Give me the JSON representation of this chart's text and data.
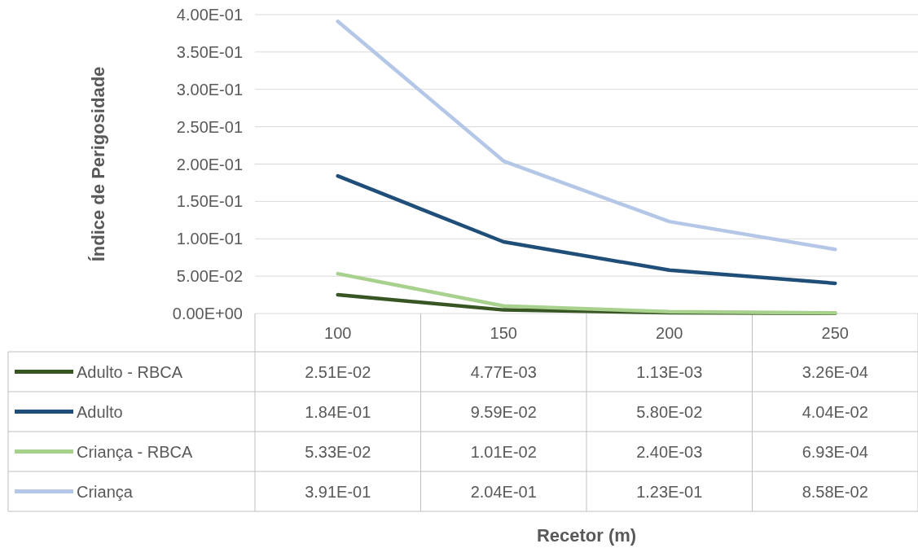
{
  "chart_data": {
    "type": "line",
    "annotations": [
      "Recetor (m)"
    ],
    "ylabel": "Índice de Perigosidade",
    "categories": [
      "100",
      "150",
      "200",
      "250"
    ],
    "ylim": [
      0,
      0.4
    ],
    "yticks": [
      {
        "value": 0,
        "label": "0.00E+00"
      },
      {
        "value": 0.05,
        "label": "5.00E-02"
      },
      {
        "value": 0.1,
        "label": "1.00E-01"
      },
      {
        "value": 0.15,
        "label": "1.50E-01"
      },
      {
        "value": 0.2,
        "label": "2.00E-01"
      },
      {
        "value": 0.25,
        "label": "2.50E-01"
      },
      {
        "value": 0.3,
        "label": "3.00E-01"
      },
      {
        "value": 0.35,
        "label": "3.50E-01"
      },
      {
        "value": 0.4,
        "label": "4.00E-01"
      }
    ],
    "grid": "y",
    "legend": "bottom",
    "marker": "none",
    "line_style": "solid",
    "series": [
      {
        "name": "Adulto - RBCA",
        "color": "#375623",
        "values": [
          0.0251,
          0.00477,
          0.00113,
          0.000326
        ],
        "value_labels": [
          "2.51E-02",
          "4.77E-03",
          "1.13E-03",
          "3.26E-04"
        ]
      },
      {
        "name": "Adulto",
        "color": "#1f4e79",
        "values": [
          0.184,
          0.0959,
          0.058,
          0.0404
        ],
        "value_labels": [
          "1.84E-01",
          "9.59E-02",
          "5.80E-02",
          "4.04E-02"
        ]
      },
      {
        "name": "Criança - RBCA",
        "color": "#a9d18e",
        "values": [
          0.0533,
          0.0101,
          0.0024,
          0.000693
        ],
        "value_labels": [
          "5.33E-02",
          "1.01E-02",
          "2.40E-03",
          "6.93E-04"
        ]
      },
      {
        "name": "Criança",
        "color": "#b4c7e7",
        "values": [
          0.391,
          0.204,
          0.123,
          0.0858
        ],
        "value_labels": [
          "3.91E-01",
          "2.04E-01",
          "1.23E-01",
          "8.58E-02"
        ]
      }
    ]
  }
}
